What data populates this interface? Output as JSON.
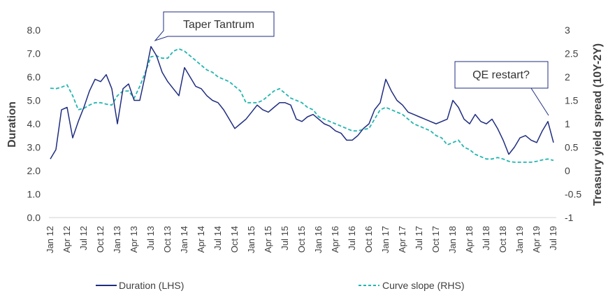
{
  "chart_data": {
    "type": "line",
    "ylabel_left": "Duration",
    "ylabel_right": "Treasury yield spread (10Y-2Y)",
    "ylim_left": [
      0,
      8
    ],
    "ylim_right": [
      -1,
      3
    ],
    "yticks_left": [
      "0.0",
      "1.0",
      "2.0",
      "3.0",
      "4.0",
      "5.0",
      "6.0",
      "7.0",
      "8.0"
    ],
    "yticks_right": [
      "-1",
      "-0.5",
      "0",
      "0.5",
      "1",
      "1.5",
      "2",
      "2.5",
      "3"
    ],
    "x_tick_labels": [
      "Jan 12",
      "Apr 12",
      "Jul 12",
      "Oct 12",
      "Jan 13",
      "Apr 13",
      "Jul 13",
      "Oct 13",
      "Jan 14",
      "Apr 14",
      "Jul 14",
      "Oct 14",
      "Jan 15",
      "Apr 15",
      "Jul 15",
      "Oct 15",
      "Jan 16",
      "Apr 16",
      "Jul 16",
      "Oct 16",
      "Jan 17",
      "Apr 17",
      "Jul 17",
      "Oct 17",
      "Jan 18",
      "Apr 18",
      "Jul 18",
      "Oct 18",
      "Jan 19",
      "Apr 19",
      "Jul 19"
    ],
    "grid": false,
    "legend_position": "bottom",
    "annotations": [
      "Taper Tantrum",
      "QE restart?"
    ],
    "series": [
      {
        "name": "Duration (LHS)",
        "axis": "left",
        "style": "solid",
        "color": "#1f2d80",
        "x": [
          "Jan 12",
          "Feb 12",
          "Mar 12",
          "Apr 12",
          "May 12",
          "Jun 12",
          "Jul 12",
          "Aug 12",
          "Sep 12",
          "Oct 12",
          "Nov 12",
          "Dec 12",
          "Jan 13",
          "Feb 13",
          "Mar 13",
          "Apr 13",
          "May 13",
          "Jun 13",
          "Jul 13",
          "Aug 13",
          "Sep 13",
          "Oct 13",
          "Nov 13",
          "Dec 13",
          "Jan 14",
          "Feb 14",
          "Mar 14",
          "Apr 14",
          "May 14",
          "Jun 14",
          "Jul 14",
          "Aug 14",
          "Sep 14",
          "Oct 14",
          "Nov 14",
          "Dec 14",
          "Jan 15",
          "Feb 15",
          "Mar 15",
          "Apr 15",
          "May 15",
          "Jun 15",
          "Jul 15",
          "Aug 15",
          "Sep 15",
          "Oct 15",
          "Nov 15",
          "Dec 15",
          "Jan 16",
          "Feb 16",
          "Mar 16",
          "Apr 16",
          "May 16",
          "Jun 16",
          "Jul 16",
          "Aug 16",
          "Sep 16",
          "Oct 16",
          "Nov 16",
          "Dec 16",
          "Jan 17",
          "Feb 17",
          "Mar 17",
          "Apr 17",
          "May 17",
          "Jun 17",
          "Jul 17",
          "Aug 17",
          "Sep 17",
          "Oct 17",
          "Nov 17",
          "Dec 17",
          "Jan 18",
          "Feb 18",
          "Mar 18",
          "Apr 18",
          "May 18",
          "Jun 18",
          "Jul 18",
          "Aug 18",
          "Sep 18",
          "Oct 18",
          "Nov 18",
          "Dec 18",
          "Jan 19",
          "Feb 19",
          "Mar 19",
          "Apr 19",
          "May 19",
          "Jun 19",
          "Jul 19"
        ],
        "values": [
          2.5,
          2.9,
          4.6,
          4.7,
          3.4,
          4.1,
          4.7,
          5.4,
          5.9,
          5.8,
          6.1,
          5.5,
          4.0,
          5.5,
          5.7,
          5.0,
          5.0,
          6.1,
          7.3,
          6.9,
          6.2,
          5.8,
          5.5,
          5.2,
          6.4,
          6.0,
          5.6,
          5.5,
          5.2,
          5.0,
          4.9,
          4.6,
          4.2,
          3.8,
          4.0,
          4.2,
          4.5,
          4.8,
          4.6,
          4.5,
          4.7,
          4.9,
          4.9,
          4.8,
          4.2,
          4.1,
          4.3,
          4.4,
          4.2,
          4.0,
          3.9,
          3.7,
          3.6,
          3.3,
          3.3,
          3.5,
          3.8,
          4.0,
          4.6,
          4.9,
          5.9,
          5.4,
          5.0,
          4.8,
          4.5,
          4.4,
          4.3,
          4.2,
          4.1,
          4.0,
          4.1,
          4.2,
          5.0,
          4.7,
          4.2,
          4.0,
          4.4,
          4.1,
          4.0,
          4.2,
          3.8,
          3.3,
          2.7,
          3.0,
          3.4,
          3.5,
          3.3,
          3.2,
          3.7,
          4.1,
          3.2
        ]
      },
      {
        "name": "Curve slope (RHS)",
        "axis": "right",
        "style": "dashed",
        "color": "#22b6b0",
        "x": [
          "Jan 12",
          "Feb 12",
          "Mar 12",
          "Apr 12",
          "May 12",
          "Jun 12",
          "Jul 12",
          "Aug 12",
          "Sep 12",
          "Oct 12",
          "Nov 12",
          "Dec 12",
          "Jan 13",
          "Feb 13",
          "Mar 13",
          "Apr 13",
          "May 13",
          "Jun 13",
          "Jul 13",
          "Aug 13",
          "Sep 13",
          "Oct 13",
          "Nov 13",
          "Dec 13",
          "Jan 14",
          "Feb 14",
          "Mar 14",
          "Apr 14",
          "May 14",
          "Jun 14",
          "Jul 14",
          "Aug 14",
          "Sep 14",
          "Oct 14",
          "Nov 14",
          "Dec 14",
          "Jan 15",
          "Feb 15",
          "Mar 15",
          "Apr 15",
          "May 15",
          "Jun 15",
          "Jul 15",
          "Aug 15",
          "Sep 15",
          "Oct 15",
          "Nov 15",
          "Dec 15",
          "Jan 16",
          "Feb 16",
          "Mar 16",
          "Apr 16",
          "May 16",
          "Jun 16",
          "Jul 16",
          "Aug 16",
          "Sep 16",
          "Oct 16",
          "Nov 16",
          "Dec 16",
          "Jan 17",
          "Feb 17",
          "Mar 17",
          "Apr 17",
          "May 17",
          "Jun 17",
          "Jul 17",
          "Aug 17",
          "Sep 17",
          "Oct 17",
          "Nov 17",
          "Dec 17",
          "Jan 18",
          "Feb 18",
          "Mar 18",
          "Apr 18",
          "May 18",
          "Jun 18",
          "Jul 18",
          "Aug 18",
          "Sep 18",
          "Oct 18",
          "Nov 18",
          "Dec 18",
          "Jan 19",
          "Feb 19",
          "Mar 19",
          "Apr 19",
          "May 19",
          "Jun 19",
          "Jul 19"
        ],
        "values": [
          1.76,
          1.75,
          1.78,
          1.83,
          1.6,
          1.3,
          1.33,
          1.4,
          1.45,
          1.45,
          1.42,
          1.4,
          1.6,
          1.7,
          1.7,
          1.55,
          1.8,
          2.1,
          2.43,
          2.45,
          2.4,
          2.4,
          2.55,
          2.6,
          2.55,
          2.45,
          2.35,
          2.25,
          2.15,
          2.1,
          2.0,
          1.95,
          1.9,
          1.8,
          1.7,
          1.45,
          1.45,
          1.45,
          1.5,
          1.6,
          1.7,
          1.75,
          1.65,
          1.55,
          1.5,
          1.45,
          1.35,
          1.3,
          1.15,
          1.1,
          1.05,
          1.0,
          0.95,
          0.9,
          0.85,
          0.85,
          0.88,
          0.9,
          1.1,
          1.3,
          1.35,
          1.3,
          1.25,
          1.2,
          1.1,
          1.0,
          0.95,
          0.9,
          0.85,
          0.75,
          0.7,
          0.55,
          0.6,
          0.65,
          0.5,
          0.45,
          0.35,
          0.3,
          0.25,
          0.25,
          0.28,
          0.25,
          0.2,
          0.18,
          0.18,
          0.18,
          0.18,
          0.2,
          0.23,
          0.25,
          0.22
        ]
      }
    ]
  },
  "legend": {
    "duration_label": "Duration (LHS)",
    "slope_label": "Curve slope (RHS)"
  },
  "callouts": {
    "taper": "Taper Tantrum",
    "qe": "QE restart?"
  },
  "colors": {
    "duration": "#1f2d80",
    "slope": "#22b6b0"
  }
}
